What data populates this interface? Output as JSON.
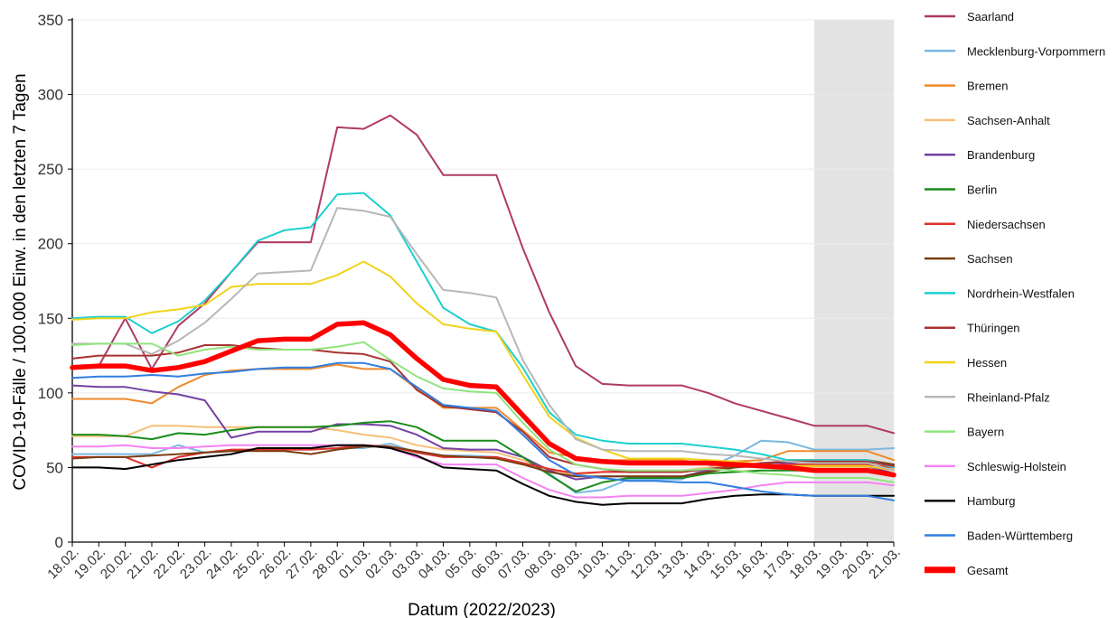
{
  "chart_data": {
    "type": "line",
    "xlabel": "Datum (2022/2023)",
    "ylabel": "COVID-19-Fälle / 100.000 Einw. in den letzten 7 Tagen",
    "ylim": [
      0,
      350
    ],
    "yticks": [
      0,
      50,
      100,
      150,
      200,
      250,
      300,
      350
    ],
    "grid": true,
    "legend_position": "right",
    "shaded_region": {
      "from": "18.03.",
      "to": "21.03.",
      "color": "#e3e3e3"
    },
    "categories": [
      "18.02.",
      "19.02.",
      "20.02.",
      "21.02.",
      "22.02.",
      "23.02.",
      "24.02.",
      "25.02.",
      "26.02.",
      "27.02.",
      "28.02.",
      "01.03.",
      "02.03.",
      "03.03.",
      "04.03.",
      "05.03.",
      "06.03.",
      "07.03.",
      "08.03.",
      "09.03.",
      "10.03.",
      "11.03.",
      "12.03.",
      "13.03.",
      "14.03.",
      "15.03.",
      "16.03.",
      "17.03.",
      "18.03.",
      "19.03.",
      "20.03.",
      "21.03."
    ],
    "series": [
      {
        "name": "Saarland",
        "color": "#b03a62",
        "width": 2,
        "values": [
          117,
          118,
          150,
          116,
          145,
          160,
          181,
          201,
          201,
          201,
          278,
          277,
          286,
          273,
          246,
          246,
          246,
          197,
          154,
          118,
          106,
          105,
          105,
          105,
          100,
          93,
          88,
          83,
          78,
          78,
          78,
          73
        ]
      },
      {
        "name": "Mecklenburg-Vorpommern",
        "color": "#7ab8e0",
        "width": 2,
        "values": [
          59,
          59,
          59,
          59,
          65,
          60,
          61,
          62,
          62,
          62,
          63,
          63,
          66,
          60,
          58,
          58,
          57,
          53,
          46,
          33,
          35,
          42,
          42,
          42,
          50,
          58,
          68,
          67,
          62,
          62,
          62,
          63
        ]
      },
      {
        "name": "Bremen",
        "color": "#f0892a",
        "width": 2,
        "values": [
          96,
          96,
          96,
          93,
          104,
          112,
          115,
          116,
          116,
          116,
          119,
          116,
          116,
          103,
          90,
          90,
          90,
          75,
          60,
          57,
          55,
          55,
          55,
          55,
          52,
          54,
          55,
          61,
          61,
          61,
          61,
          55
        ]
      },
      {
        "name": "Sachsen-Anhalt",
        "color": "#f6c07a",
        "width": 2,
        "values": [
          71,
          71,
          71,
          78,
          78,
          77,
          77,
          77,
          77,
          77,
          75,
          72,
          70,
          65,
          62,
          61,
          60,
          55,
          49,
          45,
          47,
          48,
          48,
          48,
          50,
          51,
          51,
          50,
          50,
          50,
          50,
          49
        ]
      },
      {
        "name": "Brandenburg",
        "color": "#7440a5",
        "width": 2,
        "values": [
          105,
          104,
          104,
          101,
          99,
          95,
          70,
          74,
          74,
          74,
          79,
          79,
          78,
          72,
          63,
          62,
          62,
          57,
          48,
          42,
          44,
          44,
          44,
          44,
          48,
          51,
          53,
          53,
          51,
          51,
          51,
          46
        ]
      },
      {
        "name": "Berlin",
        "color": "#1a8c1a",
        "width": 2,
        "values": [
          72,
          72,
          71,
          69,
          73,
          72,
          75,
          77,
          77,
          77,
          78,
          80,
          81,
          77,
          68,
          68,
          68,
          57,
          45,
          34,
          40,
          43,
          43,
          43,
          46,
          47,
          48,
          48,
          48,
          48,
          48,
          46
        ]
      },
      {
        "name": "Niedersachsen",
        "color": "#e0302c",
        "width": 2,
        "values": [
          57,
          57,
          57,
          50,
          57,
          60,
          62,
          62,
          62,
          62,
          63,
          65,
          64,
          60,
          57,
          57,
          57,
          53,
          49,
          46,
          47,
          47,
          47,
          47,
          49,
          50,
          51,
          52,
          52,
          52,
          52,
          50
        ]
      },
      {
        "name": "Sachsen",
        "color": "#7a3e12",
        "width": 2,
        "values": [
          56,
          57,
          57,
          58,
          59,
          60,
          61,
          61,
          61,
          59,
          62,
          64,
          64,
          61,
          58,
          57,
          56,
          52,
          47,
          44,
          44,
          44,
          44,
          44,
          47,
          50,
          52,
          55,
          55,
          55,
          55,
          52
        ]
      },
      {
        "name": "Nordrhein-Westfalen",
        "color": "#1ecfcf",
        "width": 2,
        "values": [
          150,
          151,
          151,
          140,
          148,
          162,
          181,
          202,
          209,
          211,
          233,
          234,
          219,
          188,
          157,
          146,
          141,
          117,
          87,
          72,
          68,
          66,
          66,
          66,
          64,
          62,
          59,
          55,
          55,
          55,
          55,
          50
        ]
      },
      {
        "name": "Thüringen",
        "color": "#a83232",
        "width": 2,
        "values": [
          123,
          125,
          125,
          125,
          127,
          132,
          132,
          130,
          129,
          129,
          127,
          126,
          121,
          102,
          91,
          89,
          87,
          74,
          57,
          52,
          49,
          47,
          47,
          47,
          49,
          51,
          53,
          54,
          54,
          54,
          54,
          51
        ]
      },
      {
        "name": "Hessen",
        "color": "#f2d21a",
        "width": 2,
        "values": [
          149,
          150,
          150,
          154,
          156,
          159,
          171,
          173,
          173,
          173,
          179,
          188,
          178,
          160,
          146,
          143,
          141,
          112,
          84,
          70,
          62,
          56,
          56,
          56,
          55,
          54,
          52,
          51,
          51,
          51,
          51,
          48
        ]
      },
      {
        "name": "Rheinland-Pfalz",
        "color": "#b7b7b7",
        "width": 2,
        "values": [
          133,
          133,
          133,
          126,
          135,
          147,
          163,
          180,
          181,
          182,
          224,
          222,
          218,
          193,
          169,
          167,
          164,
          122,
          92,
          69,
          62,
          61,
          61,
          61,
          59,
          58,
          56,
          54,
          53,
          53,
          53,
          48
        ]
      },
      {
        "name": "Bayern",
        "color": "#90e47e",
        "width": 2,
        "values": [
          132,
          133,
          133,
          133,
          125,
          129,
          131,
          129,
          129,
          129,
          131,
          134,
          122,
          111,
          103,
          101,
          100,
          80,
          62,
          52,
          49,
          48,
          48,
          48,
          49,
          48,
          46,
          45,
          43,
          43,
          43,
          40
        ]
      },
      {
        "name": "Schleswig-Holstein",
        "color": "#f582f2",
        "width": 2,
        "values": [
          64,
          64,
          65,
          63,
          63,
          64,
          65,
          65,
          65,
          65,
          65,
          65,
          63,
          57,
          52,
          52,
          52,
          43,
          35,
          30,
          30,
          31,
          31,
          31,
          33,
          35,
          38,
          40,
          40,
          40,
          40,
          38
        ]
      },
      {
        "name": "Hamburg",
        "color": "#000000",
        "width": 2,
        "values": [
          50,
          50,
          49,
          52,
          55,
          57,
          59,
          63,
          63,
          63,
          65,
          65,
          63,
          58,
          50,
          49,
          48,
          39,
          31,
          27,
          25,
          26,
          26,
          26,
          29,
          31,
          32,
          32,
          31,
          31,
          31,
          31
        ]
      },
      {
        "name": "Baden-Württemberg",
        "color": "#2f7ee0",
        "width": 2,
        "values": [
          110,
          111,
          111,
          112,
          111,
          113,
          114,
          116,
          117,
          117,
          120,
          120,
          116,
          104,
          92,
          90,
          88,
          72,
          55,
          45,
          43,
          41,
          41,
          40,
          40,
          37,
          34,
          32,
          31,
          31,
          31,
          28
        ]
      },
      {
        "name": "Gesamt",
        "color": "#ff0000",
        "width": 5.5,
        "values": [
          117,
          118,
          118,
          115,
          117,
          121,
          128,
          135,
          136,
          136,
          146,
          147,
          139,
          123,
          109,
          105,
          104,
          85,
          66,
          56,
          54,
          53,
          53,
          53,
          53,
          52,
          51,
          50,
          48,
          48,
          48,
          45
        ]
      }
    ]
  }
}
